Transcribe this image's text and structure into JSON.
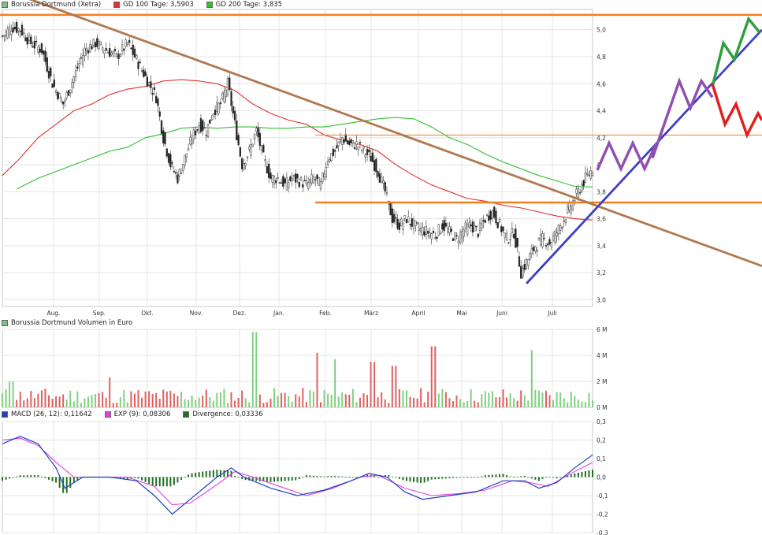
{
  "legend_price": [
    {
      "label": "Borussia Dortmund (Xetra)",
      "color": "#80c080"
    },
    {
      "label": "GD 100 Tage: 3,5903",
      "color": "#e03030"
    },
    {
      "label": "GD 200 Tage: 3,835",
      "color": "#30c030"
    }
  ],
  "legend_volume": [
    {
      "label": "Borussia Dortmund Volumen in Euro",
      "color": "#80c080"
    }
  ],
  "legend_macd": [
    {
      "label": "MACD (26, 12): 0,11642",
      "color": "#2040c0"
    },
    {
      "label": "EXP (9): 0,08306",
      "color": "#e040e0"
    },
    {
      "label": "Divergence: 0,03336",
      "color": "#207020"
    }
  ],
  "chart_data": [
    {
      "type": "candlestick",
      "title": "Borussia Dortmund (Xetra)",
      "x_tick_labels": [
        "Aug.",
        "Sep.",
        "Okt.",
        "Nov.",
        "Dez.",
        "Jan.",
        "Feb.",
        "März",
        "April",
        "Mai",
        "Juni",
        "Juli"
      ],
      "y_tick_labels": [
        "3,0",
        "3,2",
        "3,4",
        "3,6",
        "3,8",
        "4",
        "4,2",
        "4,4",
        "4,6",
        "4,8",
        "5,0"
      ],
      "ylim": [
        2.95,
        5.15
      ],
      "grid": true,
      "close_path": [
        [
          0,
          4.95
        ],
        [
          5,
          5.02
        ],
        [
          10,
          5.0
        ],
        [
          16,
          4.9
        ],
        [
          22,
          4.85
        ],
        [
          28,
          4.6
        ],
        [
          34,
          4.45
        ],
        [
          40,
          4.65
        ],
        [
          46,
          4.85
        ],
        [
          52,
          4.9
        ],
        [
          58,
          4.85
        ],
        [
          64,
          4.8
        ],
        [
          70,
          4.9
        ],
        [
          76,
          4.75
        ],
        [
          82,
          4.6
        ],
        [
          86,
          4.5
        ],
        [
          90,
          4.2
        ],
        [
          94,
          4.0
        ],
        [
          98,
          3.9
        ],
        [
          102,
          4.05
        ],
        [
          106,
          4.2
        ],
        [
          110,
          4.3
        ],
        [
          114,
          4.25
        ],
        [
          118,
          4.4
        ],
        [
          122,
          4.45
        ],
        [
          126,
          4.6
        ],
        [
          130,
          4.3
        ],
        [
          134,
          4.0
        ],
        [
          138,
          4.1
        ],
        [
          142,
          4.25
        ],
        [
          146,
          4.05
        ],
        [
          150,
          3.9
        ],
        [
          154,
          3.9
        ],
        [
          158,
          3.85
        ],
        [
          162,
          3.9
        ],
        [
          166,
          3.88
        ],
        [
          170,
          3.85
        ],
        [
          174,
          3.9
        ],
        [
          178,
          3.85
        ],
        [
          182,
          4.05
        ],
        [
          186,
          4.1
        ],
        [
          190,
          4.2
        ],
        [
          194,
          4.15
        ],
        [
          198,
          4.15
        ],
        [
          202,
          4.1
        ],
        [
          206,
          4.05
        ],
        [
          210,
          3.95
        ],
        [
          214,
          3.8
        ],
        [
          218,
          3.6
        ],
        [
          222,
          3.55
        ],
        [
          226,
          3.6
        ],
        [
          230,
          3.55
        ],
        [
          234,
          3.52
        ],
        [
          238,
          3.5
        ],
        [
          242,
          3.48
        ],
        [
          246,
          3.55
        ],
        [
          250,
          3.5
        ],
        [
          254,
          3.45
        ],
        [
          258,
          3.52
        ],
        [
          262,
          3.55
        ],
        [
          266,
          3.5
        ],
        [
          270,
          3.6
        ],
        [
          274,
          3.65
        ],
        [
          278,
          3.55
        ],
        [
          282,
          3.45
        ],
        [
          286,
          3.5
        ],
        [
          290,
          3.2
        ],
        [
          294,
          3.3
        ],
        [
          298,
          3.4
        ],
        [
          302,
          3.45
        ],
        [
          306,
          3.42
        ],
        [
          310,
          3.5
        ],
        [
          314,
          3.6
        ],
        [
          318,
          3.7
        ],
        [
          322,
          3.8
        ],
        [
          326,
          3.9
        ],
        [
          330,
          3.97
        ]
      ],
      "series": [
        {
          "name": "GD 100 Tage: 3,5903",
          "color": "#e03030",
          "points": [
            [
              0,
              3.92
            ],
            [
              10,
              4.05
            ],
            [
              20,
              4.2
            ],
            [
              30,
              4.3
            ],
            [
              40,
              4.4
            ],
            [
              50,
              4.45
            ],
            [
              60,
              4.52
            ],
            [
              70,
              4.56
            ],
            [
              80,
              4.58
            ],
            [
              90,
              4.62
            ],
            [
              100,
              4.63
            ],
            [
              110,
              4.62
            ],
            [
              120,
              4.6
            ],
            [
              130,
              4.55
            ],
            [
              140,
              4.45
            ],
            [
              150,
              4.38
            ],
            [
              160,
              4.33
            ],
            [
              170,
              4.3
            ],
            [
              180,
              4.22
            ],
            [
              190,
              4.18
            ],
            [
              200,
              4.15
            ],
            [
              210,
              4.1
            ],
            [
              220,
              4.0
            ],
            [
              230,
              3.92
            ],
            [
              240,
              3.85
            ],
            [
              250,
              3.8
            ],
            [
              260,
              3.75
            ],
            [
              270,
              3.73
            ],
            [
              280,
              3.7
            ],
            [
              290,
              3.68
            ],
            [
              300,
              3.65
            ],
            [
              310,
              3.62
            ],
            [
              320,
              3.6
            ],
            [
              330,
              3.59
            ]
          ]
        },
        {
          "name": "GD 200 Tage: 3,835",
          "color": "#30c030",
          "points": [
            [
              8,
              3.82
            ],
            [
              20,
              3.9
            ],
            [
              30,
              3.95
            ],
            [
              40,
              4.0
            ],
            [
              50,
              4.05
            ],
            [
              60,
              4.1
            ],
            [
              70,
              4.13
            ],
            [
              80,
              4.2
            ],
            [
              90,
              4.23
            ],
            [
              100,
              4.27
            ],
            [
              110,
              4.28
            ],
            [
              120,
              4.27
            ],
            [
              130,
              4.28
            ],
            [
              140,
              4.28
            ],
            [
              150,
              4.27
            ],
            [
              160,
              4.27
            ],
            [
              170,
              4.28
            ],
            [
              180,
              4.28
            ],
            [
              190,
              4.3
            ],
            [
              200,
              4.32
            ],
            [
              210,
              4.34
            ],
            [
              220,
              4.35
            ],
            [
              230,
              4.34
            ],
            [
              240,
              4.28
            ],
            [
              250,
              4.2
            ],
            [
              260,
              4.15
            ],
            [
              270,
              4.08
            ],
            [
              280,
              4.02
            ],
            [
              290,
              3.97
            ],
            [
              300,
              3.92
            ],
            [
              310,
              3.88
            ],
            [
              320,
              3.84
            ],
            [
              330,
              3.835
            ]
          ]
        }
      ],
      "annotations": [
        {
          "type": "hline",
          "value": 5.11,
          "color": "#f08020"
        },
        {
          "type": "hline",
          "value": 4.22,
          "color": "#f08020"
        },
        {
          "type": "hline",
          "value": 3.72,
          "color": "#f08020",
          "from_x": 175
        },
        {
          "type": "trendline",
          "from": [
            0,
            5.3
          ],
          "to": [
            420,
            3.25
          ],
          "color": "#b07850"
        },
        {
          "type": "trendline",
          "from": [
            293,
            3.12
          ],
          "to": [
            420,
            5.0
          ],
          "color": "#4040c0"
        },
        {
          "type": "zigzag",
          "color": "#9050b0"
        },
        {
          "type": "zigzag",
          "color": "#30a040"
        },
        {
          "type": "zigzag",
          "color": "#e02020"
        }
      ]
    },
    {
      "type": "bar",
      "title": "Borussia Dortmund Volumen in Euro",
      "y_tick_labels": [
        "0 M",
        "2 M",
        "4 M",
        "6 M"
      ],
      "ylim": [
        0,
        6
      ],
      "colors": {
        "up": "#80d080",
        "down": "#e06060"
      }
    },
    {
      "type": "line",
      "title": "MACD",
      "y_tick_labels": [
        "0,3",
        "0,2",
        "0,1",
        "0,0",
        "-0,1",
        "-0,2",
        "-0,3"
      ],
      "ylim": [
        -0.3,
        0.3
      ],
      "series": [
        {
          "name": "MACD (26, 12): 0,11642",
          "color": "#2040c0"
        },
        {
          "name": "EXP (9): 0,08306",
          "color": "#e040e0"
        },
        {
          "name": "Divergence: 0,03336",
          "color": "#207020"
        }
      ]
    }
  ]
}
